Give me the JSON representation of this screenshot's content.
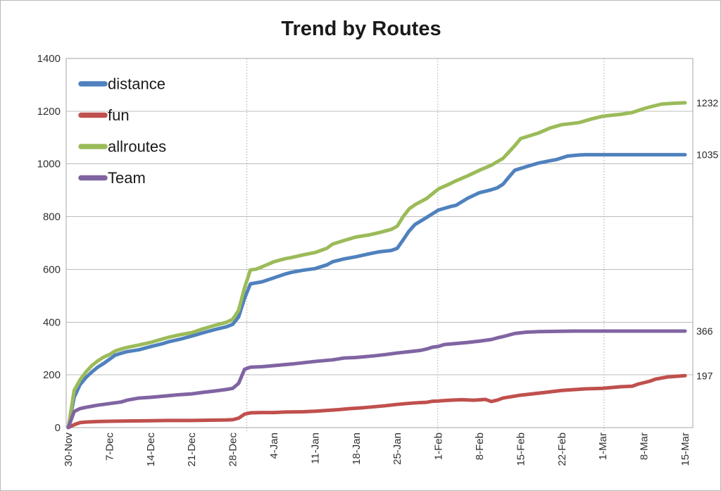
{
  "chart_data": {
    "type": "line",
    "title": "Trend by Routes",
    "xlabel": "",
    "ylabel": "",
    "ylim": [
      0,
      1400
    ],
    "y_ticks": [
      0,
      200,
      400,
      600,
      800,
      1000,
      1200,
      1400
    ],
    "x_range_days": [
      0,
      105
    ],
    "x_ticks": [
      {
        "day": 0,
        "label": "30-Nov"
      },
      {
        "day": 7,
        "label": "7-Dec"
      },
      {
        "day": 14,
        "label": "14-Dec"
      },
      {
        "day": 21,
        "label": "21-Dec"
      },
      {
        "day": 28,
        "label": "28-Dec"
      },
      {
        "day": 35,
        "label": "4-Jan"
      },
      {
        "day": 42,
        "label": "11-Jan"
      },
      {
        "day": 49,
        "label": "18-Jan"
      },
      {
        "day": 56,
        "label": "25-Jan"
      },
      {
        "day": 63,
        "label": "1-Feb"
      },
      {
        "day": 70,
        "label": "8-Feb"
      },
      {
        "day": 77,
        "label": "15-Feb"
      },
      {
        "day": 84,
        "label": "22-Feb"
      },
      {
        "day": 91,
        "label": "1-Mar"
      },
      {
        "day": 98,
        "label": "8-Mar"
      },
      {
        "day": 105,
        "label": "15-Mar"
      }
    ],
    "grid": {
      "horizontal": "solid",
      "horizontal_color": "#bdbdbd",
      "border_color": "#a6a6a6",
      "vertical_dotted_color": "#a8a8a8",
      "vertical_dotted_days": [
        30.4,
        62.9,
        91.2
      ],
      "vertical_dotted_dates": [
        "1-Jan",
        "1-Feb",
        "1-Mar"
      ]
    },
    "legend": {
      "position": "top-left-inside",
      "entries": [
        "distance",
        "fun",
        "allroutes",
        "Team"
      ]
    },
    "end_labels": [
      {
        "series": "allroutes",
        "value": 1232,
        "text": "1232"
      },
      {
        "series": "distance",
        "value": 1035,
        "text": "1035"
      },
      {
        "series": "Team",
        "value": 366,
        "text": "366"
      },
      {
        "series": "fun",
        "value": 197,
        "text": "197"
      }
    ],
    "series": [
      {
        "name": "distance",
        "color": "#4F81BD",
        "points": [
          [
            0,
            0
          ],
          [
            1,
            115
          ],
          [
            2,
            163
          ],
          [
            3,
            190
          ],
          [
            4,
            211
          ],
          [
            5,
            229
          ],
          [
            6,
            243
          ],
          [
            7,
            259
          ],
          [
            8,
            275
          ],
          [
            9,
            282
          ],
          [
            10,
            288
          ],
          [
            12,
            295
          ],
          [
            14,
            307
          ],
          [
            16,
            318
          ],
          [
            17,
            325
          ],
          [
            19,
            335
          ],
          [
            21,
            347
          ],
          [
            23,
            360
          ],
          [
            25,
            372
          ],
          [
            27,
            383
          ],
          [
            28,
            392
          ],
          [
            29,
            420
          ],
          [
            30,
            490
          ],
          [
            31,
            545
          ],
          [
            33,
            553
          ],
          [
            35,
            568
          ],
          [
            37,
            583
          ],
          [
            38,
            589
          ],
          [
            40,
            597
          ],
          [
            42,
            603
          ],
          [
            44,
            617
          ],
          [
            45,
            629
          ],
          [
            47,
            640
          ],
          [
            49,
            648
          ],
          [
            51,
            658
          ],
          [
            53,
            667
          ],
          [
            55,
            672
          ],
          [
            56,
            680
          ],
          [
            57,
            712
          ],
          [
            58,
            745
          ],
          [
            59,
            770
          ],
          [
            61,
            797
          ],
          [
            63,
            825
          ],
          [
            65,
            838
          ],
          [
            66,
            843
          ],
          [
            68,
            870
          ],
          [
            70,
            891
          ],
          [
            72,
            902
          ],
          [
            73,
            909
          ],
          [
            74,
            923
          ],
          [
            75,
            950
          ],
          [
            76,
            976
          ],
          [
            78,
            990
          ],
          [
            80,
            1003
          ],
          [
            82,
            1012
          ],
          [
            83,
            1016
          ],
          [
            85,
            1030
          ],
          [
            87,
            1034
          ],
          [
            88,
            1035
          ],
          [
            95,
            1035
          ],
          [
            105,
            1035
          ]
        ]
      },
      {
        "name": "fun",
        "color": "#C0504D",
        "points": [
          [
            0,
            0
          ],
          [
            1,
            11
          ],
          [
            2,
            19
          ],
          [
            3,
            21
          ],
          [
            5,
            23
          ],
          [
            7,
            24
          ],
          [
            10,
            25
          ],
          [
            14,
            26
          ],
          [
            17,
            27
          ],
          [
            21,
            27
          ],
          [
            24,
            28
          ],
          [
            27,
            29
          ],
          [
            28,
            30
          ],
          [
            29,
            36
          ],
          [
            30,
            51
          ],
          [
            31,
            56
          ],
          [
            33,
            57
          ],
          [
            35,
            57
          ],
          [
            37,
            59
          ],
          [
            40,
            60
          ],
          [
            42,
            62
          ],
          [
            44,
            65
          ],
          [
            46,
            68
          ],
          [
            48,
            72
          ],
          [
            50,
            75
          ],
          [
            52,
            79
          ],
          [
            54,
            83
          ],
          [
            56,
            88
          ],
          [
            58,
            92
          ],
          [
            60,
            95
          ],
          [
            61,
            96
          ],
          [
            62,
            100
          ],
          [
            63,
            101
          ],
          [
            65,
            104
          ],
          [
            67,
            106
          ],
          [
            69,
            104
          ],
          [
            71,
            107
          ],
          [
            72,
            99
          ],
          [
            73,
            104
          ],
          [
            74,
            112
          ],
          [
            77,
            123
          ],
          [
            79,
            128
          ],
          [
            81,
            133
          ],
          [
            84,
            141
          ],
          [
            86,
            144
          ],
          [
            88,
            147
          ],
          [
            91,
            149
          ],
          [
            94,
            155
          ],
          [
            96,
            157
          ],
          [
            97,
            165
          ],
          [
            99,
            176
          ],
          [
            100,
            184
          ],
          [
            102,
            192
          ],
          [
            105,
            197
          ]
        ]
      },
      {
        "name": "allroutes",
        "color": "#9BBB59",
        "points": [
          [
            0,
            0
          ],
          [
            1,
            141
          ],
          [
            2,
            181
          ],
          [
            3,
            211
          ],
          [
            4,
            235
          ],
          [
            5,
            253
          ],
          [
            6,
            267
          ],
          [
            7,
            277
          ],
          [
            8,
            291
          ],
          [
            9,
            298
          ],
          [
            10,
            304
          ],
          [
            12,
            313
          ],
          [
            14,
            323
          ],
          [
            16,
            336
          ],
          [
            17,
            342
          ],
          [
            19,
            352
          ],
          [
            21,
            360
          ],
          [
            23,
            375
          ],
          [
            25,
            388
          ],
          [
            27,
            400
          ],
          [
            28,
            411
          ],
          [
            29,
            445
          ],
          [
            30,
            530
          ],
          [
            31,
            598
          ],
          [
            32,
            601
          ],
          [
            33,
            610
          ],
          [
            35,
            629
          ],
          [
            37,
            641
          ],
          [
            38,
            645
          ],
          [
            40,
            655
          ],
          [
            42,
            664
          ],
          [
            44,
            680
          ],
          [
            45,
            696
          ],
          [
            47,
            710
          ],
          [
            49,
            723
          ],
          [
            51,
            730
          ],
          [
            53,
            740
          ],
          [
            55,
            752
          ],
          [
            56,
            764
          ],
          [
            57,
            800
          ],
          [
            58,
            829
          ],
          [
            59,
            845
          ],
          [
            61,
            869
          ],
          [
            63,
            905
          ],
          [
            65,
            925
          ],
          [
            66,
            936
          ],
          [
            68,
            955
          ],
          [
            70,
            976
          ],
          [
            72,
            995
          ],
          [
            73,
            1008
          ],
          [
            74,
            1021
          ],
          [
            75,
            1045
          ],
          [
            76,
            1069
          ],
          [
            77,
            1096
          ],
          [
            79,
            1110
          ],
          [
            80,
            1117
          ],
          [
            82,
            1136
          ],
          [
            84,
            1149
          ],
          [
            86,
            1154
          ],
          [
            87,
            1157
          ],
          [
            89,
            1170
          ],
          [
            91,
            1181
          ],
          [
            93,
            1186
          ],
          [
            94,
            1188
          ],
          [
            96,
            1195
          ],
          [
            98,
            1210
          ],
          [
            99,
            1216
          ],
          [
            101,
            1227
          ],
          [
            103,
            1230
          ],
          [
            105,
            1232
          ]
        ]
      },
      {
        "name": "Team",
        "color": "#8064A2",
        "points": [
          [
            0,
            0
          ],
          [
            1,
            61
          ],
          [
            2,
            72
          ],
          [
            3,
            77
          ],
          [
            5,
            85
          ],
          [
            7,
            91
          ],
          [
            9,
            97
          ],
          [
            10,
            104
          ],
          [
            12,
            112
          ],
          [
            14,
            115
          ],
          [
            16,
            119
          ],
          [
            17,
            121
          ],
          [
            19,
            125
          ],
          [
            21,
            128
          ],
          [
            23,
            134
          ],
          [
            25,
            139
          ],
          [
            27,
            145
          ],
          [
            28,
            149
          ],
          [
            29,
            168
          ],
          [
            30,
            221
          ],
          [
            31,
            229
          ],
          [
            33,
            231
          ],
          [
            35,
            235
          ],
          [
            38,
            241
          ],
          [
            40,
            246
          ],
          [
            42,
            251
          ],
          [
            45,
            257
          ],
          [
            47,
            264
          ],
          [
            49,
            266
          ],
          [
            52,
            272
          ],
          [
            54,
            277
          ],
          [
            56,
            283
          ],
          [
            58,
            288
          ],
          [
            60,
            293
          ],
          [
            61,
            298
          ],
          [
            62,
            305
          ],
          [
            63,
            308
          ],
          [
            64,
            315
          ],
          [
            66,
            319
          ],
          [
            68,
            323
          ],
          [
            70,
            328
          ],
          [
            72,
            334
          ],
          [
            73,
            340
          ],
          [
            74,
            345
          ],
          [
            76,
            357
          ],
          [
            78,
            362
          ],
          [
            80,
            364
          ],
          [
            83,
            365
          ],
          [
            86,
            366
          ],
          [
            105,
            366
          ]
        ]
      }
    ]
  }
}
